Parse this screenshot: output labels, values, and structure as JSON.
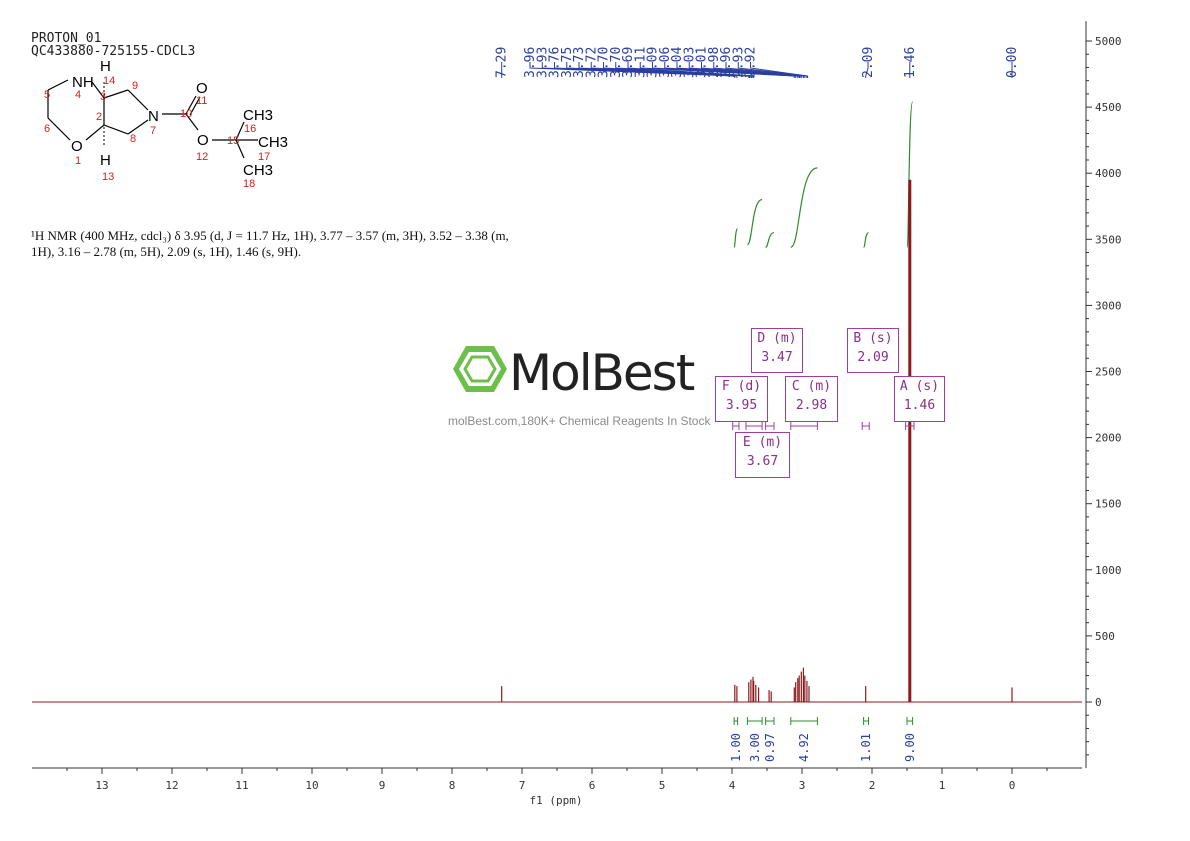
{
  "header": {
    "title": "PROTON_01",
    "sample": "QC433880-725155-CDCL3"
  },
  "structure": {
    "atoms": {
      "NH": "NH",
      "N": "N",
      "O1": "O",
      "O11": "O",
      "O12": "O",
      "H14": "H",
      "H13": "H",
      "CH3_16": "CH3",
      "CH3_17": "CH3",
      "CH3_18": "CH3"
    },
    "numbers": [
      "1",
      "2",
      "3",
      "4",
      "5",
      "6",
      "7",
      "8",
      "9",
      "10",
      "11",
      "12",
      "13",
      "14",
      "15",
      "16",
      "17",
      "18"
    ]
  },
  "nmr_description": {
    "line1": "¹H NMR (400 MHz, cdcl₃) δ 3.95 (d, J = 11.7 Hz, 1H), 3.77 – 3.57 (m, 3H), 3.52 – 3.38 (m,",
    "line2": "1H), 3.16 – 2.78 (m, 5H), 2.09 (s, 1H), 1.46 (s, 9H)."
  },
  "watermark": {
    "brand": "MolBest",
    "tagline": "molBest.com,180K+ Chemical Reagents In Stock"
  },
  "colors": {
    "spectrum": "#8b1a1a",
    "integral": "#2e8b2e",
    "peak_labels": "#2a3fa0",
    "multiplet_box": "#a03ea0",
    "logo_green": "#6cc04a"
  },
  "chart_data": {
    "type": "line",
    "xlabel": "f1 (ppm)",
    "x_reversed": true,
    "xlim": [
      14.0,
      -1.0
    ],
    "ylim": [
      -500,
      5000
    ],
    "x_ticks": [
      13,
      12,
      11,
      10,
      9,
      8,
      7,
      6,
      5,
      4,
      3,
      2,
      1,
      0
    ],
    "y_ticks": [
      5000,
      4500,
      4000,
      3500,
      3000,
      2500,
      2000,
      1500,
      1000,
      500,
      0
    ],
    "peak_labels": [
      "7.29",
      "3.96",
      "3.93",
      "3.76",
      "3.75",
      "3.73",
      "3.72",
      "3.70",
      "3.70",
      "3.69",
      "3.11",
      "3.09",
      "3.06",
      "3.04",
      "3.03",
      "3.01",
      "2.98",
      "2.96",
      "2.93",
      "2.92",
      "2.09",
      "1.46",
      "0.00"
    ],
    "peaks": [
      {
        "ppm": 7.29,
        "height": 120
      },
      {
        "ppm": 3.96,
        "height": 130
      },
      {
        "ppm": 3.93,
        "height": 120
      },
      {
        "ppm": 3.76,
        "height": 150
      },
      {
        "ppm": 3.73,
        "height": 170
      },
      {
        "ppm": 3.7,
        "height": 190
      },
      {
        "ppm": 3.69,
        "height": 160
      },
      {
        "ppm": 3.66,
        "height": 130
      },
      {
        "ppm": 3.62,
        "height": 110
      },
      {
        "ppm": 3.47,
        "height": 90
      },
      {
        "ppm": 3.44,
        "height": 80
      },
      {
        "ppm": 3.11,
        "height": 110
      },
      {
        "ppm": 3.09,
        "height": 150
      },
      {
        "ppm": 3.06,
        "height": 180
      },
      {
        "ppm": 3.04,
        "height": 200
      },
      {
        "ppm": 3.01,
        "height": 230
      },
      {
        "ppm": 2.98,
        "height": 260
      },
      {
        "ppm": 2.96,
        "height": 200
      },
      {
        "ppm": 2.93,
        "height": 160
      },
      {
        "ppm": 2.9,
        "height": 120
      },
      {
        "ppm": 2.09,
        "height": 120
      },
      {
        "ppm": 1.46,
        "height": 3950
      },
      {
        "ppm": 0.0,
        "height": 110
      }
    ],
    "integrals": [
      {
        "from": 3.97,
        "to": 3.92,
        "value": "1.00",
        "y0": 3440,
        "y1": 3580
      },
      {
        "from": 3.78,
        "to": 3.57,
        "value": "3.00",
        "y0": 3460,
        "y1": 3800
      },
      {
        "from": 3.52,
        "to": 3.4,
        "value": "0.97",
        "y0": 3440,
        "y1": 3550
      },
      {
        "from": 3.16,
        "to": 2.78,
        "value": "4.92",
        "y0": 3440,
        "y1": 4040
      },
      {
        "from": 2.12,
        "to": 2.05,
        "value": "1.01",
        "y0": 3440,
        "y1": 3550
      },
      {
        "from": 1.5,
        "to": 1.42,
        "value": "9.00",
        "y0": 3440,
        "y1": 4540
      }
    ],
    "multiplets": [
      {
        "label": "D (m)",
        "shift": "3.47",
        "from": 3.52,
        "to": 3.4
      },
      {
        "label": "B (s)",
        "shift": "2.09",
        "from": 2.14,
        "to": 2.04
      },
      {
        "label": "F (d)",
        "shift": "3.95",
        "from": 3.99,
        "to": 3.9
      },
      {
        "label": "C (m)",
        "shift": "2.98",
        "from": 3.16,
        "to": 2.78
      },
      {
        "label": "A (s)",
        "shift": "1.46",
        "from": 1.52,
        "to": 1.4
      },
      {
        "label": "E (m)",
        "shift": "3.67",
        "from": 3.8,
        "to": 3.57
      }
    ]
  }
}
